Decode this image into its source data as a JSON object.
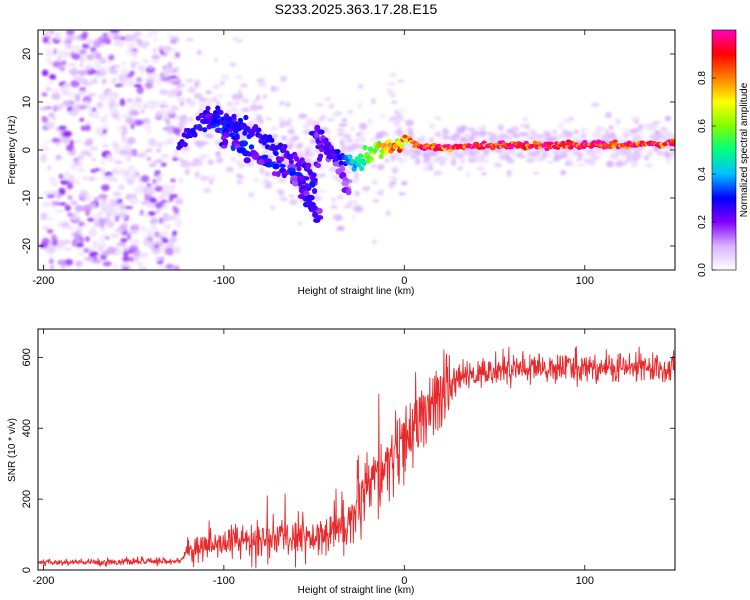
{
  "title": "S233.2025.363.17.28.E15",
  "chart_data": [
    {
      "type": "heatmap",
      "name": "spectrogram",
      "xlabel": "Height of straight line (km)",
      "ylabel": "Frequency (Hz)",
      "xlim": [
        -203,
        150
      ],
      "ylim": [
        -25,
        25
      ],
      "xticks": [
        -200,
        -100,
        0,
        100
      ],
      "yticks": [
        -20,
        -10,
        0,
        10,
        20
      ],
      "colorbar": {
        "label": "Normalized spectral amplitude",
        "range": [
          0,
          1
        ],
        "ticks": [
          "0.0",
          "0.2",
          "0.4",
          "0.6",
          "0.8"
        ],
        "tick_values": [
          0,
          0.2,
          0.4,
          0.6,
          0.8
        ],
        "colors": [
          "#ffffff",
          "#d9b3ff",
          "#8000ff",
          "#0000ff",
          "#00c0ff",
          "#00ff80",
          "#80ff00",
          "#ffff00",
          "#ff8000",
          "#ff0000",
          "#ff00c0"
        ]
      },
      "ridge": {
        "x": [
          -125,
          -115,
          -100,
          -90,
          -80,
          -70,
          -60,
          -50,
          -45,
          -40,
          -35,
          -30,
          -25,
          -20,
          -15,
          -10,
          -5,
          0,
          5,
          10,
          20,
          40,
          60,
          80,
          100,
          120,
          150
        ],
        "freq": [
          1,
          5,
          7,
          5,
          3,
          0,
          -2,
          -5,
          2,
          0,
          -1,
          -3,
          -2,
          -1,
          0,
          0.5,
          1,
          2.5,
          1.5,
          0.5,
          0.5,
          0.8,
          1,
          1,
          1,
          1,
          1.5
        ],
        "amplitude": [
          0.25,
          0.3,
          0.3,
          0.3,
          0.28,
          0.28,
          0.25,
          0.25,
          0.2,
          0.25,
          0.3,
          0.4,
          0.5,
          0.6,
          0.7,
          0.75,
          0.8,
          0.85,
          0.9,
          0.95,
          0.97,
          0.97,
          0.98,
          0.98,
          0.98,
          0.98,
          0.98
        ]
      },
      "noise_region_x": [
        -200,
        -125
      ]
    },
    {
      "type": "line",
      "name": "snr",
      "xlabel": "Height of straight line (km)",
      "ylabel": "SNR (10 * v/v)",
      "xlim": [
        -203,
        150
      ],
      "ylim": [
        0,
        680
      ],
      "xticks": [
        -200,
        -100,
        0,
        100
      ],
      "yticks": [
        0,
        200,
        400,
        600
      ],
      "color": "#e8282a",
      "trend": {
        "x": [
          -203,
          -125,
          -120,
          -100,
          -60,
          -40,
          -30,
          -20,
          -10,
          0,
          10,
          20,
          30,
          50,
          80,
          100,
          150
        ],
        "y": [
          20,
          25,
          50,
          80,
          90,
          110,
          140,
          220,
          300,
          350,
          430,
          480,
          540,
          565,
          570,
          570,
          570
        ]
      }
    }
  ]
}
